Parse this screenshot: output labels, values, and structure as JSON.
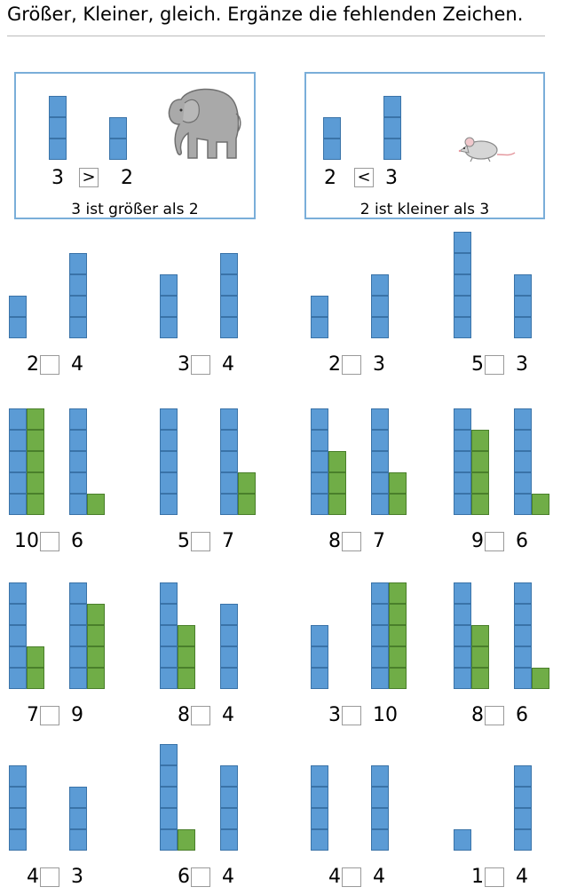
{
  "title": "Größer, Kleiner, gleich. Ergänze die fehlenden Zeichen.",
  "colors": {
    "blue": "#5b9bd5",
    "green": "#70ad47",
    "frame": "#7aaed9"
  },
  "examples": [
    {
      "left": 3,
      "right": 2,
      "sign": ">",
      "caption": "3 ist größer als 2",
      "animal_icon": "elephant-icon"
    },
    {
      "left": 2,
      "right": 3,
      "sign": "<",
      "caption": "2 ist kleiner als 3",
      "animal_icon": "mouse-icon"
    }
  ],
  "tasks": [
    {
      "left": 2,
      "right": 4,
      "left_stack": [
        2
      ],
      "right_stack": [
        4
      ]
    },
    {
      "left": 3,
      "right": 4,
      "left_stack": [
        3
      ],
      "right_stack": [
        4
      ]
    },
    {
      "left": 2,
      "right": 3,
      "left_stack": [
        2
      ],
      "right_stack": [
        3
      ]
    },
    {
      "left": 5,
      "right": 3,
      "left_stack": [
        5
      ],
      "right_stack": [
        3
      ]
    },
    {
      "left": 10,
      "right": 6,
      "left_stack": [
        5,
        5
      ],
      "right_stack": [
        5,
        1
      ]
    },
    {
      "left": 5,
      "right": 7,
      "left_stack": [
        5
      ],
      "right_stack": [
        5,
        2
      ]
    },
    {
      "left": 8,
      "right": 7,
      "left_stack": [
        5,
        3
      ],
      "right_stack": [
        5,
        2
      ]
    },
    {
      "left": 9,
      "right": 6,
      "left_stack": [
        5,
        4
      ],
      "right_stack": [
        5,
        1
      ]
    },
    {
      "left": 7,
      "right": 9,
      "left_stack": [
        5,
        2
      ],
      "right_stack": [
        5,
        4
      ]
    },
    {
      "left": 8,
      "right": 4,
      "left_stack": [
        5,
        3
      ],
      "right_stack": [
        4
      ]
    },
    {
      "left": 3,
      "right": 10,
      "left_stack": [
        3
      ],
      "right_stack": [
        5,
        5
      ]
    },
    {
      "left": 8,
      "right": 6,
      "left_stack": [
        5,
        3
      ],
      "right_stack": [
        5,
        1
      ]
    },
    {
      "left": 4,
      "right": 3,
      "left_stack": [
        4
      ],
      "right_stack": [
        3
      ]
    },
    {
      "left": 6,
      "right": 4,
      "left_stack": [
        5,
        1
      ],
      "right_stack": [
        4
      ]
    },
    {
      "left": 4,
      "right": 4,
      "left_stack": [
        4
      ],
      "right_stack": [
        4
      ]
    },
    {
      "left": 1,
      "right": 4,
      "left_stack": [
        1
      ],
      "right_stack": [
        4
      ]
    }
  ]
}
